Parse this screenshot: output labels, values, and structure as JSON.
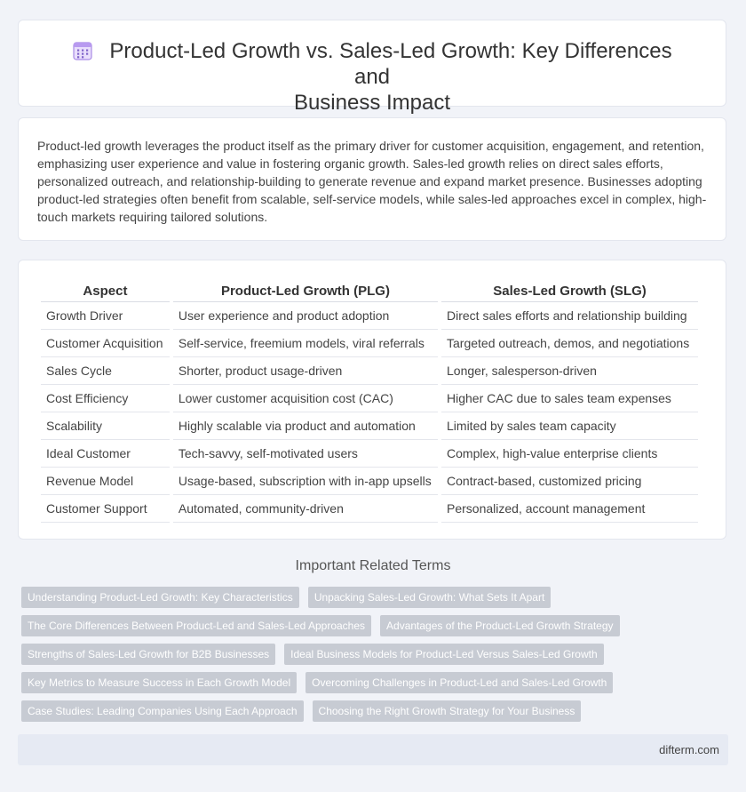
{
  "header": {
    "title_line1": "Product-Led Growth vs. Sales-Led Growth: Key Differences and",
    "title_line2": "Business Impact",
    "icon": "calendar-grid-icon"
  },
  "intro": {
    "text": "Product-led growth leverages the product itself as the primary driver for customer acquisition, engagement, and retention, emphasizing user experience and value in fostering organic growth. Sales-led growth relies on direct sales efforts, personalized outreach, and relationship-building to generate revenue and expand market presence. Businesses adopting product-led strategies often benefit from scalable, self-service models, while sales-led approaches excel in complex, high-touch markets requiring tailored solutions."
  },
  "table": {
    "headers": [
      "Aspect",
      "Product-Led Growth (PLG)",
      "Sales-Led Growth (SLG)"
    ],
    "rows": [
      [
        "Growth Driver",
        "User experience and product adoption",
        "Direct sales efforts and relationship building"
      ],
      [
        "Customer Acquisition",
        "Self-service, freemium models, viral referrals",
        "Targeted outreach, demos, and negotiations"
      ],
      [
        "Sales Cycle",
        "Shorter, product usage-driven",
        "Longer, salesperson-driven"
      ],
      [
        "Cost Efficiency",
        "Lower customer acquisition cost (CAC)",
        "Higher CAC due to sales team expenses"
      ],
      [
        "Scalability",
        "Highly scalable via product and automation",
        "Limited by sales team capacity"
      ],
      [
        "Ideal Customer",
        "Tech-savvy, self-motivated users",
        "Complex, high-value enterprise clients"
      ],
      [
        "Revenue Model",
        "Usage-based, subscription with in-app upsells",
        "Contract-based, customized pricing"
      ],
      [
        "Customer Support",
        "Automated, community-driven",
        "Personalized, account management"
      ]
    ]
  },
  "related": {
    "title": "Important Related Terms",
    "tags": [
      [
        "Understanding Product-Led Growth: Key Characteristics",
        "Unpacking Sales-Led Growth: What Sets It Apart"
      ],
      [
        "The Core Differences Between Product-Led and Sales-Led Approaches",
        "Advantages of the Product-Led Growth Strategy"
      ],
      [
        "Strengths of Sales-Led Growth for B2B Businesses",
        "Ideal Business Models for Product-Led Versus Sales-Led Growth"
      ],
      [
        "Key Metrics to Measure Success in Each Growth Model",
        "Overcoming Challenges in Product-Led and Sales-Led Growth"
      ],
      [
        "Case Studies: Leading Companies Using Each Approach",
        "Choosing the Right Growth Strategy for Your Business"
      ]
    ]
  },
  "footer": {
    "site": "difterm.com"
  }
}
